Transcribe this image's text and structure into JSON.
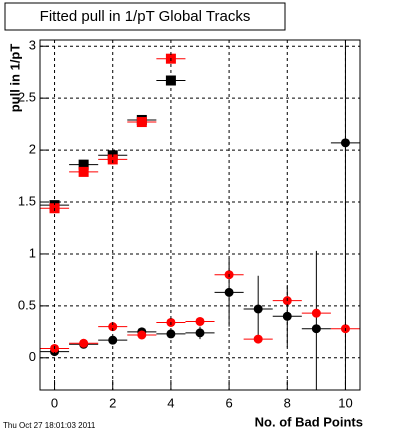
{
  "chart_data": {
    "type": "scatter",
    "title": "Fitted pull in 1/pT  Global Tracks",
    "x_label": "No. of Bad Points",
    "y_label": "pull in 1/pT",
    "footer": "Thu Oct 27 18:01:03 2011",
    "xlim": [
      -0.5,
      10.5
    ],
    "ylim": [
      -0.31,
      3.06
    ],
    "xticks": [
      0,
      2,
      4,
      6,
      8,
      10
    ],
    "yticks": [
      0,
      0.5,
      1,
      1.5,
      2,
      2.5,
      3
    ],
    "grid": true,
    "x_error": 0.5,
    "series": [
      {
        "marker": "square",
        "color": "#000000",
        "x": [
          0,
          1,
          2,
          3,
          4
        ],
        "values": [
          1.47,
          1.86,
          1.95,
          2.29,
          2.67
        ]
      },
      {
        "marker": "square",
        "color": "#ff0000",
        "x": [
          0,
          1,
          2,
          3,
          4
        ],
        "values": [
          1.44,
          1.79,
          1.91,
          2.27,
          2.88
        ]
      },
      {
        "marker": "circle",
        "color": "#000000",
        "x": [
          0,
          1,
          2,
          3,
          4,
          5,
          6,
          7,
          8,
          9,
          10
        ],
        "values": [
          0.06,
          0.13,
          0.17,
          0.25,
          0.23,
          0.24,
          0.63,
          0.47,
          0.4,
          0.28,
          2.07
        ],
        "errors": [
          0.02,
          0.02,
          0.03,
          0.03,
          0.03,
          0.06,
          0.33,
          0.32,
          0.3,
          0.75,
          2.5
        ]
      },
      {
        "marker": "circle",
        "color": "#ff0000",
        "x": [
          0,
          1,
          2,
          3,
          4,
          5,
          6,
          7,
          8,
          9,
          10
        ],
        "values": [
          0.09,
          0.14,
          0.3,
          0.22,
          0.34,
          0.35,
          0.8,
          0.18,
          0.55,
          0.43,
          0.28
        ]
      }
    ]
  }
}
